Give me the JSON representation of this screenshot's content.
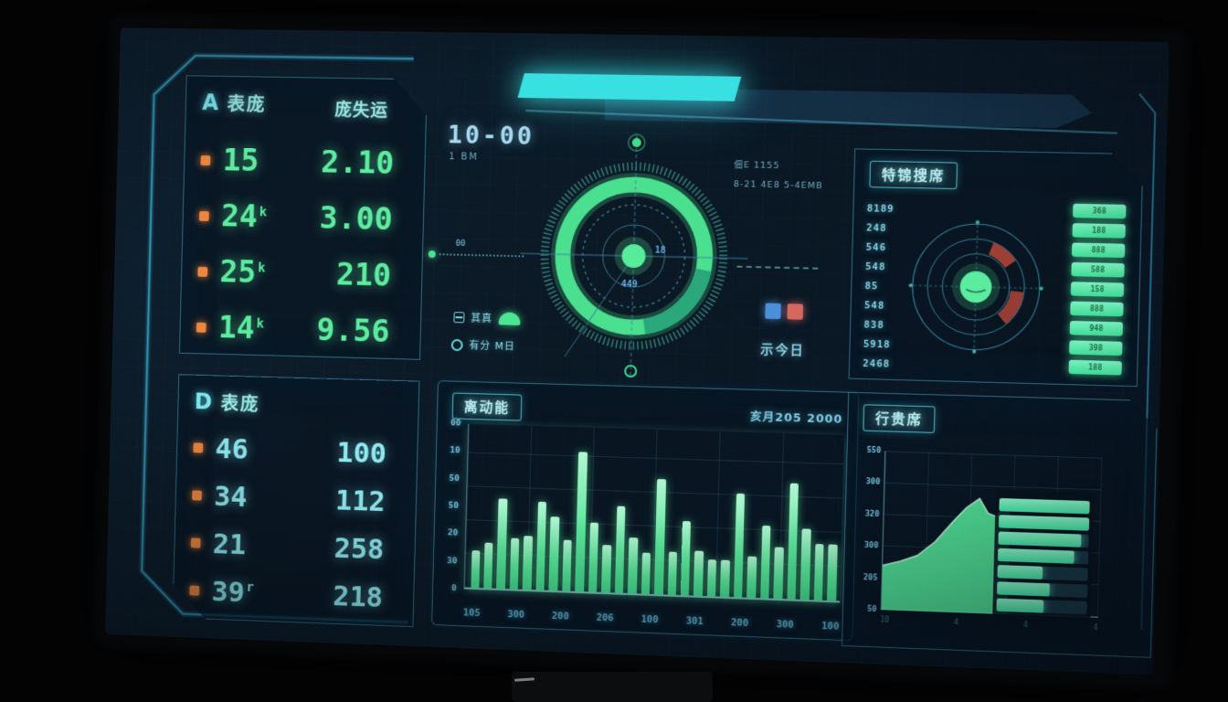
{
  "meta": {
    "accent_cyan": "#38e0e2",
    "accent_green": "#52e896",
    "accent_orange": "#ec8640",
    "legend_blue": "#4a90d9",
    "legend_red": "#d4685f"
  },
  "panel_a": {
    "letter": "A",
    "title": "表庞",
    "col2_header": "庞失运",
    "rows": [
      {
        "value": "15",
        "suffix": "",
        "value2": "2.10"
      },
      {
        "value": "24",
        "suffix": "k",
        "value2": "3.00"
      },
      {
        "value": "25",
        "suffix": "k",
        "value2": "210"
      },
      {
        "value": "14",
        "suffix": "k",
        "value2": "9.56"
      }
    ]
  },
  "panel_d": {
    "letter": "D",
    "title": "表庞",
    "rows": [
      {
        "value": "46",
        "suffix": "",
        "value2": "100"
      },
      {
        "value": "34",
        "suffix": "",
        "value2": "112"
      },
      {
        "value": "21",
        "suffix": "",
        "value2": "258"
      },
      {
        "value": "39",
        "suffix": "r",
        "value2": "218"
      }
    ]
  },
  "gauge": {
    "time": "10-00",
    "time_sub": "1 BM",
    "note1": "佃E 1155",
    "note2": "8-21 4E8 5-4EMB",
    "marker_label": "00",
    "center_label": "18",
    "center_label2": "449",
    "icon_row1_text": "其真",
    "icon_row2_text": "有分 M日",
    "legend_label": "示今日"
  },
  "radar_panel": {
    "title": "特锦搜席",
    "left_values": [
      "8189",
      "248",
      "546",
      "548",
      "85",
      "548",
      "838",
      "5918",
      "2468"
    ],
    "right_values": [
      "368",
      "188",
      "888",
      "588",
      "158",
      "888",
      "948",
      "398",
      "188"
    ]
  },
  "chart_data": [
    {
      "type": "bar",
      "title": "离动能",
      "note": "亥月205 2000",
      "y_ticks": [
        "00",
        "10",
        "50",
        "50",
        "20",
        "30",
        "0"
      ],
      "x_ticks": [
        "105",
        "300",
        "200",
        "206",
        "100",
        "301",
        "200",
        "300",
        "100"
      ],
      "values": [
        23,
        28,
        55,
        31,
        33,
        54,
        45,
        31,
        85,
        42,
        29,
        53,
        34,
        25,
        70,
        26,
        45,
        27,
        22,
        22,
        63,
        25,
        44,
        31,
        70,
        43,
        34,
        34
      ],
      "ylim": [
        0,
        100
      ],
      "grid": true,
      "legend_position": "none"
    },
    {
      "type": "area",
      "title": "行贵席",
      "y_ticks": [
        "550",
        "300",
        "320",
        "300",
        "205",
        "50"
      ],
      "x_ticks": [
        "10",
        "4",
        "4",
        "4"
      ],
      "points_pct": [
        [
          0,
          28
        ],
        [
          8,
          31
        ],
        [
          16,
          35
        ],
        [
          24,
          44
        ],
        [
          32,
          57
        ],
        [
          38,
          66
        ],
        [
          44,
          72
        ],
        [
          48,
          63
        ],
        [
          52,
          61
        ],
        [
          57,
          71
        ],
        [
          58,
          71
        ]
      ],
      "bars_bright_pct": [
        100,
        100,
        92,
        84,
        50,
        58,
        52
      ],
      "grid": true
    }
  ]
}
